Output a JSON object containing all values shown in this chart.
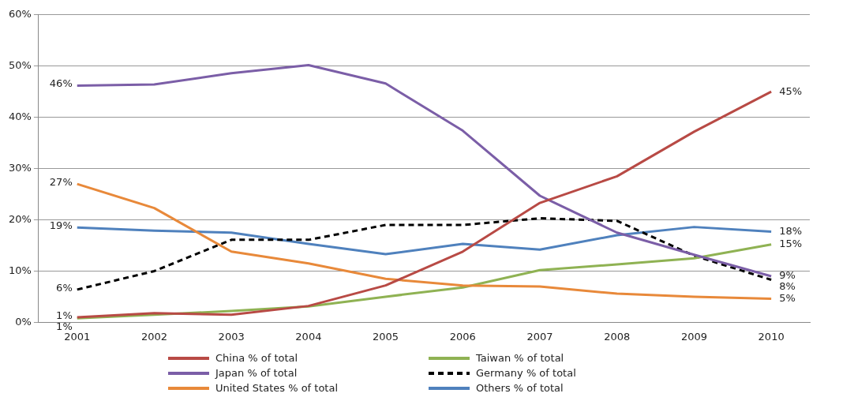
{
  "chart_data": {
    "type": "line",
    "categories": [
      "2001",
      "2002",
      "2003",
      "2004",
      "2005",
      "2006",
      "2007",
      "2008",
      "2009",
      "2010"
    ],
    "series": [
      {
        "name": "China % of total",
        "color": "#b84a45",
        "values": [
          1,
          1.8,
          1.5,
          3.2,
          7.2,
          13.8,
          23.3,
          28.5,
          37.2,
          45
        ],
        "value_labels": [
          "1%",
          null,
          null,
          null,
          null,
          null,
          null,
          null,
          null,
          "45%"
        ]
      },
      {
        "name": "Japan % of total",
        "color": "#7b5ea7",
        "values": [
          46.2,
          46.4,
          48.6,
          50.2,
          46.6,
          37.4,
          24.7,
          17.5,
          13.2,
          9
        ],
        "value_labels": [
          "46%",
          null,
          null,
          null,
          null,
          null,
          null,
          null,
          null,
          "9%"
        ]
      },
      {
        "name": "United States % of total",
        "color": "#e8893a",
        "values": [
          27,
          22.3,
          13.8,
          11.5,
          8.5,
          7.2,
          7,
          5.6,
          5,
          4.6
        ],
        "value_labels": [
          "27%",
          null,
          null,
          null,
          null,
          null,
          null,
          null,
          null,
          "5%"
        ]
      },
      {
        "name": "Taiwan % of total",
        "color": "#8fb253",
        "values": [
          0.8,
          1.5,
          2.2,
          3.1,
          5,
          6.8,
          10.2,
          11.3,
          12.5,
          15.2
        ],
        "value_labels": [
          "1%",
          null,
          null,
          null,
          null,
          null,
          null,
          null,
          null,
          "15%"
        ]
      },
      {
        "name": "Germany % of total",
        "color": "#000000",
        "line_style": "dashed",
        "values": [
          6.4,
          10,
          16.1,
          16.1,
          19,
          19,
          20.3,
          19.8,
          13,
          8.3
        ],
        "value_labels": [
          "6%",
          null,
          null,
          null,
          null,
          null,
          null,
          null,
          null,
          "8%"
        ]
      },
      {
        "name": "Others % of total",
        "color": "#4f81bd",
        "values": [
          18.5,
          17.9,
          17.5,
          15.3,
          13.3,
          15.3,
          14.2,
          17,
          18.6,
          17.7
        ],
        "value_labels": [
          "19%",
          null,
          null,
          null,
          null,
          null,
          null,
          null,
          null,
          "18%"
        ]
      }
    ],
    "ylim": [
      0,
      60
    ],
    "yticks": [
      {
        "value": 0,
        "label": "0%"
      },
      {
        "value": 10,
        "label": "10%"
      },
      {
        "value": 20,
        "label": "20%"
      },
      {
        "value": 30,
        "label": "30%"
      },
      {
        "value": 40,
        "label": "40%"
      },
      {
        "value": 50,
        "label": "50%"
      },
      {
        "value": 60,
        "label": "60%"
      }
    ],
    "grid": "y",
    "legend": "bottom",
    "marker": "none"
  }
}
